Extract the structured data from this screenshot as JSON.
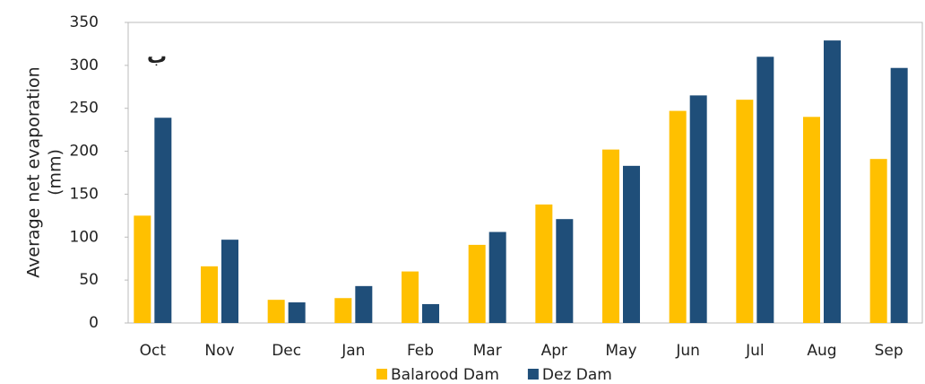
{
  "chart_data": {
    "type": "bar",
    "y_label_lines": [
      "Average net evaporation",
      "(mm)"
    ],
    "annotation": "ب",
    "categories": [
      "Oct",
      "Nov",
      "Dec",
      "Jan",
      "Feb",
      "Mar",
      "Apr",
      "May",
      "Jun",
      "Jul",
      "Aug",
      "Sep"
    ],
    "series": [
      {
        "name": "Balarood Dam",
        "color": "#ffc000",
        "values": [
          125,
          66,
          27,
          29,
          60,
          91,
          138,
          202,
          247,
          260,
          240,
          191
        ]
      },
      {
        "name": "Dez Dam",
        "color": "#1f4e79",
        "values": [
          239,
          97,
          24,
          43,
          22,
          106,
          121,
          183,
          265,
          310,
          329,
          297
        ]
      }
    ],
    "ylim": [
      0,
      350
    ],
    "yticks": [
      0,
      50,
      100,
      150,
      200,
      250,
      300,
      350
    ],
    "legend": "bottom"
  }
}
